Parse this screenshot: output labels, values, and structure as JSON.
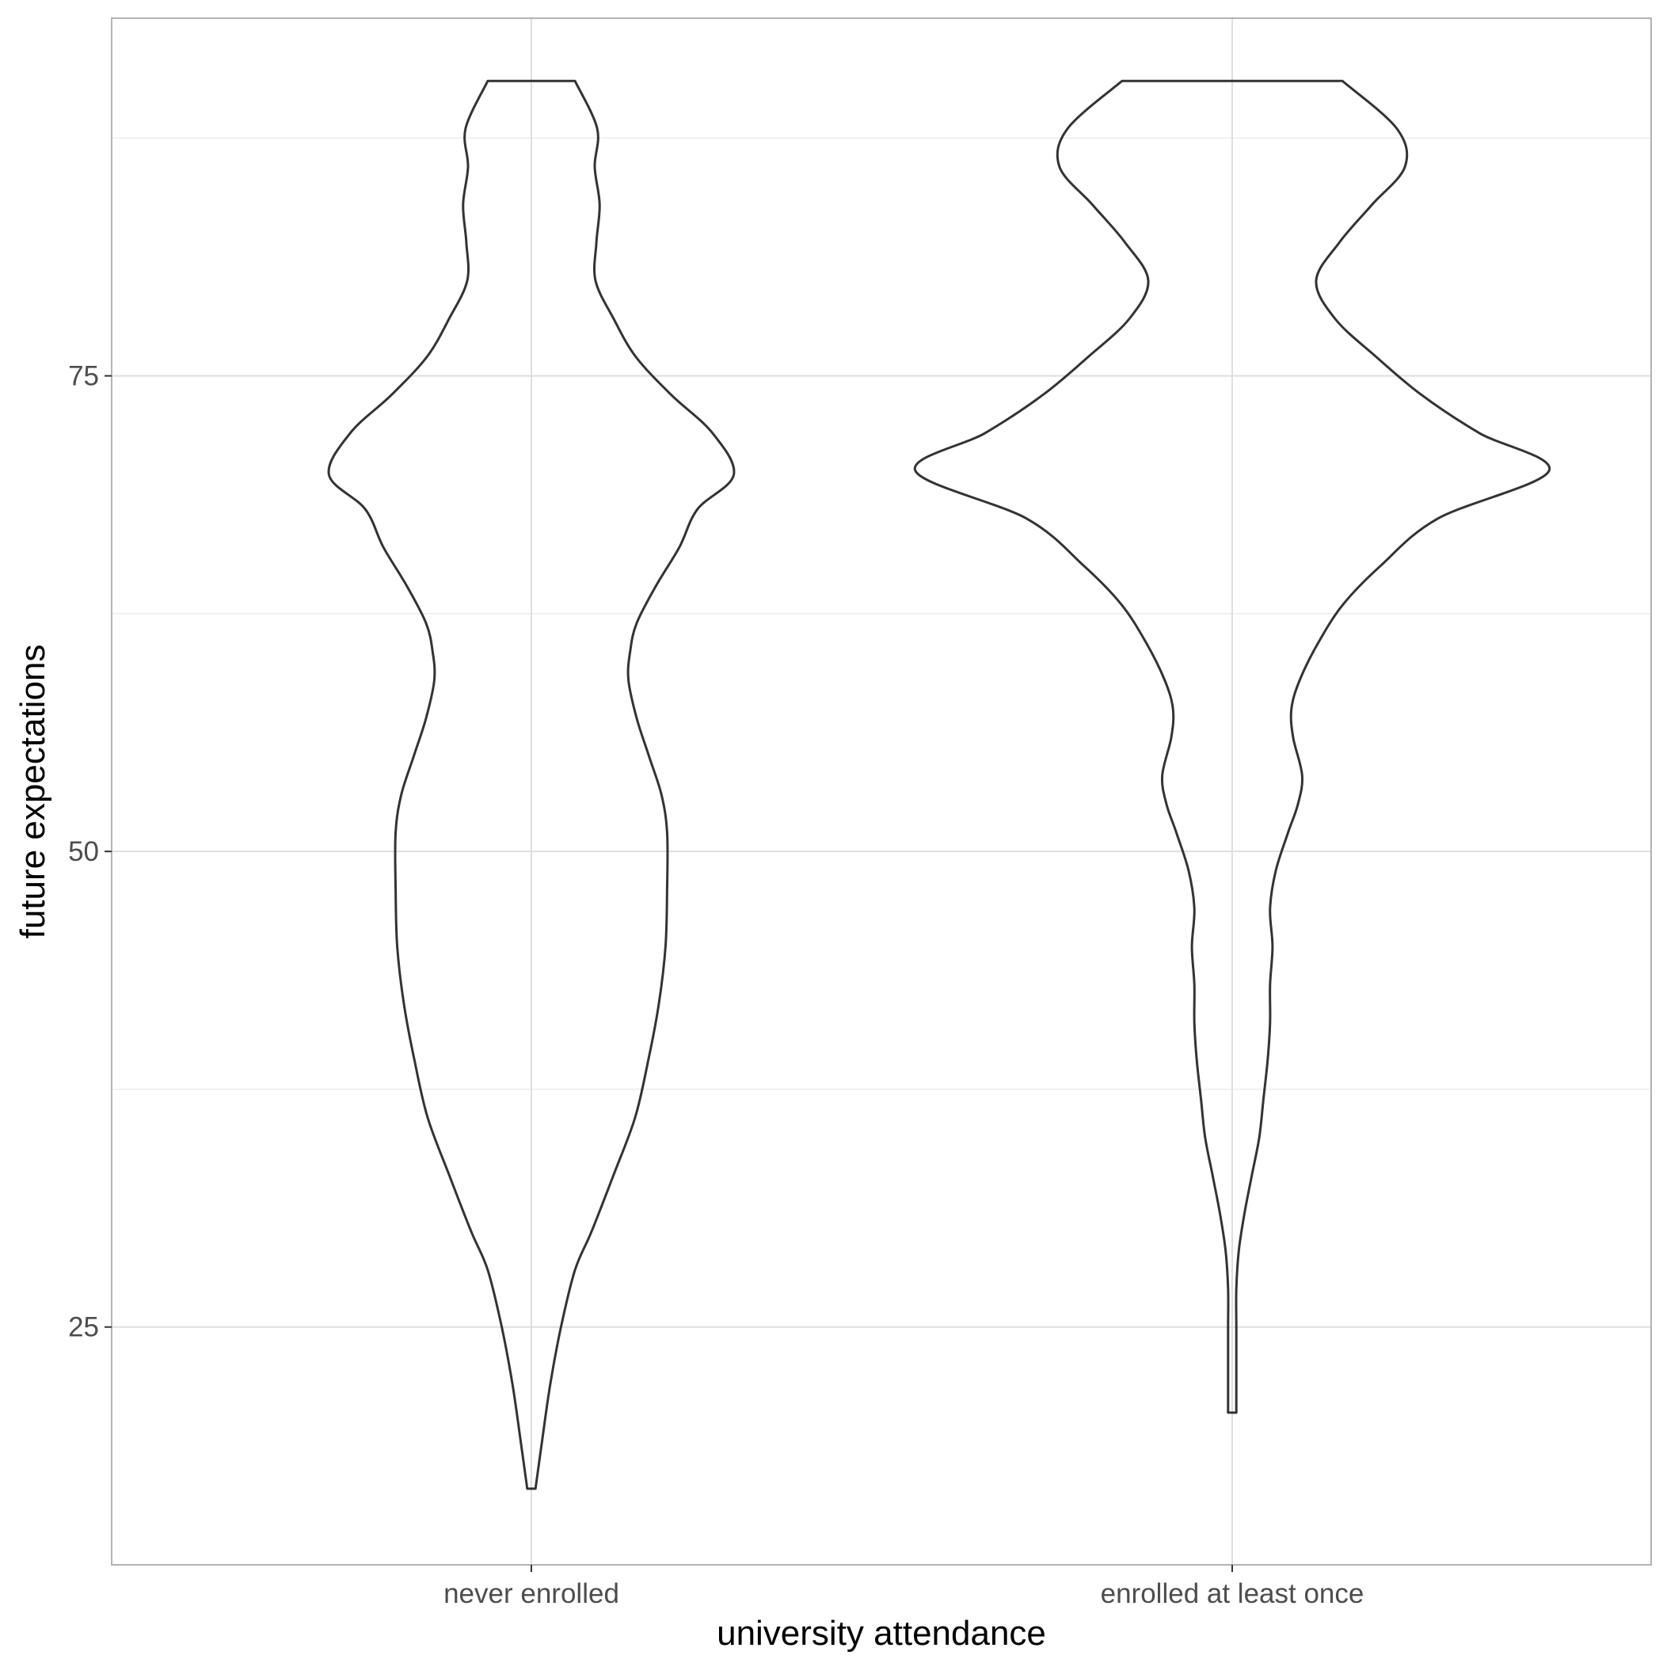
{
  "chart_data": {
    "type": "violin",
    "title": "",
    "xlabel": "university attendance",
    "ylabel": "future expectations",
    "categories": [
      "never enrolled",
      "enrolled at least once"
    ],
    "yticks": [
      25,
      50,
      75
    ],
    "ylim": [
      12.5,
      93.8
    ],
    "grid": true,
    "legend": "none",
    "colors": {
      "outline": "#333333",
      "grid": "#dedede",
      "panel_border": "#b3b3b3",
      "background": "#ffffff"
    },
    "violins": [
      {
        "category": "never enrolled",
        "ymin": 16.5,
        "ymax": 90.5,
        "density": [
          [
            16.5,
            0.5
          ],
          [
            19,
            1.3
          ],
          [
            22,
            2.3
          ],
          [
            25,
            3.6
          ],
          [
            28,
            5.3
          ],
          [
            30,
            7.3
          ],
          [
            33,
            10.0
          ],
          [
            36,
            12.6
          ],
          [
            39,
            14.2
          ],
          [
            42,
            15.5
          ],
          [
            45,
            16.3
          ],
          [
            48,
            16.5
          ],
          [
            51,
            16.5
          ],
          [
            53,
            15.8
          ],
          [
            55,
            14.3
          ],
          [
            57,
            12.8
          ],
          [
            59,
            11.8
          ],
          [
            60.5,
            12.0
          ],
          [
            62,
            12.8
          ],
          [
            64,
            15.2
          ],
          [
            66,
            18.0
          ],
          [
            68,
            20.2
          ],
          [
            69.8,
            24.6
          ],
          [
            72,
            22.0
          ],
          [
            74,
            17.0
          ],
          [
            76,
            12.7
          ],
          [
            78,
            10.0
          ],
          [
            80,
            7.8
          ],
          [
            82,
            7.9
          ],
          [
            84,
            8.3
          ],
          [
            86,
            7.7
          ],
          [
            88,
            8.0
          ],
          [
            90.5,
            5.3
          ]
        ]
      },
      {
        "category": "enrolled at least once",
        "ymin": 20.5,
        "ymax": 90.5,
        "density": [
          [
            20.5,
            0.5
          ],
          [
            23,
            0.5
          ],
          [
            25,
            0.5
          ],
          [
            27,
            0.5
          ],
          [
            29,
            0.8
          ],
          [
            31,
            1.5
          ],
          [
            33,
            2.4
          ],
          [
            35,
            3.3
          ],
          [
            37,
            3.8
          ],
          [
            39,
            4.3
          ],
          [
            41,
            4.6
          ],
          [
            43,
            4.6
          ],
          [
            45,
            4.9
          ],
          [
            47,
            4.6
          ],
          [
            49,
            5.3
          ],
          [
            51,
            6.8
          ],
          [
            52.5,
            8.0
          ],
          [
            54,
            8.5
          ],
          [
            56,
            7.4
          ],
          [
            57.5,
            7.2
          ],
          [
            59,
            8.2
          ],
          [
            61,
            10.5
          ],
          [
            63,
            13.5
          ],
          [
            65,
            18.0
          ],
          [
            67.5,
            25.0
          ],
          [
            70,
            38.5
          ],
          [
            72,
            30.0
          ],
          [
            74,
            23.0
          ],
          [
            76,
            17.5
          ],
          [
            78,
            12.5
          ],
          [
            80,
            10.2
          ],
          [
            82,
            13.0
          ],
          [
            84,
            17.0
          ],
          [
            86,
            21.0
          ],
          [
            88,
            20.0
          ],
          [
            90.5,
            13.4
          ]
        ]
      }
    ]
  }
}
